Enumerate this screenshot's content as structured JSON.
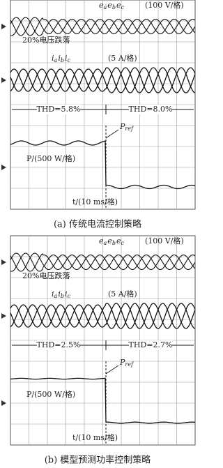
{
  "panels": [
    {
      "voltage_label": {
        "symbol": "e",
        "subscripts": [
          "a",
          "b",
          "c"
        ]
      },
      "voltage_scale": "(100 V/格)",
      "sag_label": "20%电压跌落",
      "current_label": {
        "symbol": "i",
        "subscripts": [
          "a",
          "b",
          "c"
        ]
      },
      "current_scale": "(5 A/格)",
      "thd_left": "THD=5.8%",
      "thd_right": "THD=8.0%",
      "pref_label": {
        "symbol": "P",
        "subscript": "ref"
      },
      "power_label": "P/(500 W/格)",
      "time_label": "t/(10 ms/格)",
      "caption": "(a) 传统电流控制策略"
    },
    {
      "voltage_label": {
        "symbol": "e",
        "subscripts": [
          "a",
          "b",
          "c"
        ]
      },
      "voltage_scale": "(100 V/格)",
      "sag_label": "20%电压跌落",
      "current_label": {
        "symbol": "i",
        "subscripts": [
          "a",
          "b",
          "c"
        ]
      },
      "current_scale": "(5 A/格)",
      "thd_left": "THD=2.5%",
      "thd_right": "THD=2.7%",
      "pref_label": {
        "symbol": "P",
        "subscript": "ref"
      },
      "power_label": "P/(500 W/格)",
      "time_label": "t/(10 ms/格)",
      "caption": "(b) 模型预测功率控制策略"
    }
  ]
}
